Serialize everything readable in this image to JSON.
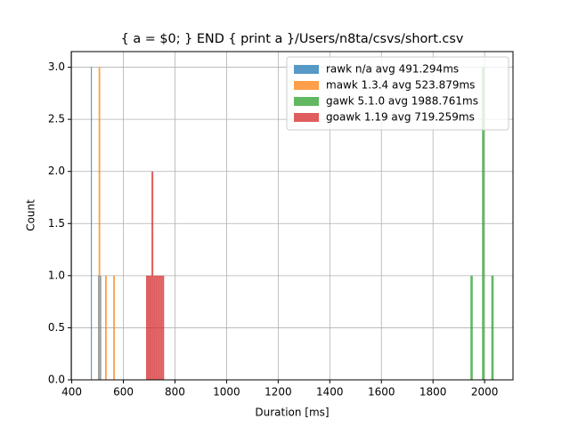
{
  "chart_data": {
    "type": "histogram",
    "title": "{  a = $0; } END { print a }/Users/n8ta/csvs/short.csv",
    "x_label": "Duration [ms]",
    "y_label": "Count",
    "xlim": [
      398,
      2110
    ],
    "ylim": [
      0,
      3.15
    ],
    "xticks": [
      400,
      600,
      800,
      1000,
      1200,
      1400,
      1600,
      1800,
      2000
    ],
    "yticks": [
      {
        "value": 0,
        "label": "0.0"
      },
      {
        "value": 0.5,
        "label": "0.5"
      },
      {
        "value": 1,
        "label": "1.0"
      },
      {
        "value": 1.5,
        "label": "1.5"
      },
      {
        "value": 2,
        "label": "2.0"
      },
      {
        "value": 2.5,
        "label": "2.5"
      },
      {
        "value": 3,
        "label": "3.0"
      }
    ],
    "grid": true,
    "legend": "upper right",
    "alpha": 0.75,
    "series": [
      {
        "name": "rawk n/a avg 491.294ms",
        "color": "#1f77b4",
        "bins": [
          474,
          478,
          482,
          486,
          490,
          494,
          498,
          502,
          506,
          510,
          514
        ],
        "values": [
          3,
          0,
          0,
          0,
          0,
          0,
          0,
          1,
          0,
          1
        ]
      },
      {
        "name": "mawk 1.3.4 avg 523.879ms",
        "color": "#ff7f0e",
        "bins": [
          504,
          510.3,
          516.6,
          522.9,
          529.2,
          535.5,
          541.8,
          548.1,
          554.4,
          560.7,
          567
        ],
        "values": [
          3,
          0,
          0,
          0,
          1,
          0,
          0,
          0,
          0,
          1
        ]
      },
      {
        "name": "gawk 5.1.0 avg 1988.761ms",
        "color": "#2ca02c",
        "bins": [
          1945,
          1954,
          1963,
          1972,
          1981,
          1990,
          1999,
          2008,
          2017,
          2026,
          2035
        ],
        "values": [
          1,
          0,
          0,
          0,
          0,
          3,
          0,
          0,
          0,
          1
        ]
      },
      {
        "name": "goawk 1.19 avg 719.259ms",
        "color": "#d62728",
        "bins": [
          688,
          695,
          702,
          709,
          716,
          723,
          730,
          737,
          744,
          751,
          758
        ],
        "values": [
          1,
          1,
          1,
          2,
          1,
          1,
          1,
          1,
          1,
          1
        ]
      }
    ]
  }
}
